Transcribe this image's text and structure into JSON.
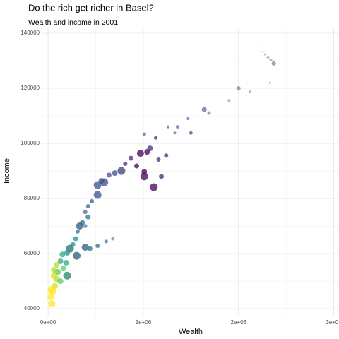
{
  "chart_data": {
    "type": "scatter",
    "title": "Do the rich get richer in Basel?",
    "subtitle": "Wealth and income in 2001",
    "x_label": "Wealth",
    "y_label": "Income",
    "xlim": [
      -60000,
      3040000
    ],
    "ylim": [
      37200,
      141800
    ],
    "xticks": [
      {
        "value": 0,
        "label": "0e+00"
      },
      {
        "value": 1000000,
        "label": "1e+06"
      },
      {
        "value": 2000000,
        "label": "2e+06"
      },
      {
        "value": 3000000,
        "label": "3e+06"
      }
    ],
    "yticks": [
      40000,
      60000,
      80000,
      100000,
      120000,
      140000
    ],
    "x_minor_grid": [
      500000,
      1500000,
      2500000
    ],
    "y_minor_grid": [
      50000,
      70000,
      90000,
      110000,
      130000
    ],
    "grid": true,
    "x": [
      2207000,
      2250000,
      2280000,
      2310000,
      2340000,
      2370000,
      2540000,
      2330000,
      2000000,
      2120000,
      1900000,
      1640000,
      1690000,
      1470000,
      1360000,
      1260000,
      1500000,
      1330000,
      1130000,
      1010000,
      1040000,
      970000,
      1070000,
      1240000,
      1160000,
      870000,
      810000,
      930000,
      1010000,
      1010000,
      1190000,
      1110000,
      770000,
      700000,
      640000,
      560000,
      590000,
      520000,
      520000,
      460000,
      420000,
      390000,
      420000,
      360000,
      330000,
      310000,
      390000,
      290000,
      260000,
      390000,
      230000,
      680000,
      610000,
      520000,
      440000,
      300000,
      200000,
      190000,
      200000,
      160000,
      130000,
      150000,
      100000,
      90000,
      70000,
      50000,
      30000,
      40000,
      90000,
      60000,
      30000,
      130000,
      60000
    ],
    "y": [
      135100,
      133300,
      132300,
      131300,
      130300,
      129000,
      125400,
      122000,
      120000,
      118700,
      115600,
      112300,
      111000,
      109000,
      106000,
      106000,
      103800,
      103800,
      102000,
      103300,
      96900,
      96400,
      98200,
      95600,
      94100,
      94600,
      92600,
      91800,
      89700,
      88000,
      88000,
      84100,
      90000,
      89200,
      88500,
      86400,
      85900,
      84900,
      81300,
      79000,
      77200,
      75100,
      73300,
      71300,
      70000,
      68000,
      70000,
      65400,
      63300,
      62300,
      61800,
      65400,
      64400,
      62800,
      61800,
      59200,
      60300,
      56700,
      52000,
      54600,
      57200,
      59700,
      53300,
      50800,
      48200,
      46400,
      44400,
      41800,
      55900,
      52000,
      46900,
      50000,
      54100
    ],
    "sizes": [
      1,
      1,
      1.5,
      2,
      2,
      3,
      1,
      1.5,
      3,
      2,
      2,
      3.5,
      2.5,
      2,
      2.5,
      2,
      2.5,
      2,
      2.5,
      2.5,
      4,
      5,
      4,
      3,
      3,
      3.5,
      3,
      3.5,
      4,
      5.5,
      3.5,
      5.5,
      5.5,
      4,
      3.5,
      4,
      5.5,
      5.5,
      5.5,
      3,
      3,
      3,
      3.5,
      3.5,
      5,
      3,
      3,
      3.5,
      3.5,
      5,
      5.5,
      2.5,
      2.5,
      3,
      3.5,
      5.5,
      4,
      4,
      5.5,
      4,
      4,
      4,
      4.5,
      4.5,
      4.5,
      5,
      5,
      5,
      4,
      4.5,
      5,
      4,
      4
    ],
    "colors": [
      "#9a9cc0",
      "#9a9cc0",
      "#9a9cc0",
      "#9a9cc0",
      "#9a9cc0",
      "#7e7fae",
      "#c8c8dc",
      "#9a9cc0",
      "#7e7fae",
      "#9a9cc0",
      "#9a9cc0",
      "#6b6a9e",
      "#7e7fae",
      "#6b5fa0",
      "#6b5fa0",
      "#6b5fa0",
      "#5d4a92",
      "#6b5fa0",
      "#472d7b",
      "#6b5fa0",
      "#440154",
      "#440154",
      "#472d7b",
      "#472d7b",
      "#472d7b",
      "#472d7b",
      "#472d7b",
      "#440154",
      "#440154",
      "#440154",
      "#472d7b",
      "#440154",
      "#3b3f7e",
      "#3b528b",
      "#3b528b",
      "#3b528b",
      "#3b528b",
      "#3b528b",
      "#3b528b",
      "#3b528b",
      "#3b6a8e",
      "#3b6a8e",
      "#2c728e",
      "#3b6a8e",
      "#2c5a7f",
      "#2c728e",
      "#5f86a5",
      "#21918c",
      "#21918c",
      "#2c5a7f",
      "#1f6f70",
      "#6b8fae",
      "#3b6a8e",
      "#2c728e",
      "#2c728e",
      "#2c5a7f",
      "#21918c",
      "#28ae80",
      "#1f8a6e",
      "#5ec962",
      "#28ae80",
      "#28ae80",
      "#5ec962",
      "#addc30",
      "#c9e020",
      "#fde725",
      "#fde725",
      "#fde725",
      "#addc30",
      "#d8e219",
      "#fde725",
      "#5ec962",
      "#addc30"
    ]
  }
}
